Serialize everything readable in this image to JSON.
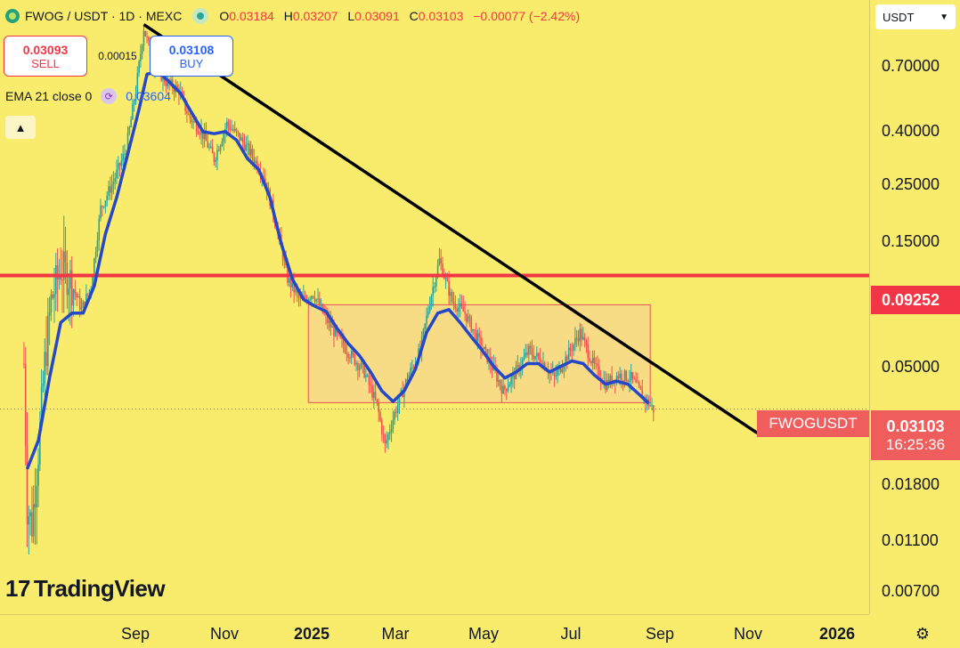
{
  "header": {
    "symbol": "FWOG / USDT · 1D · MEXC",
    "ohlc": {
      "o_label": "O",
      "o": "0.03184",
      "h_label": "H",
      "h": "0.03207",
      "l_label": "L",
      "l": "0.03091",
      "c_label": "C",
      "c": "0.03103",
      "change": "−0.00077 (−2.42%)"
    }
  },
  "trade": {
    "sell_price": "0.03093",
    "sell_label": "SELL",
    "spread": "0.00015",
    "buy_price": "0.03108",
    "buy_label": "BUY"
  },
  "indicator": {
    "label": "EMA 21 close 0",
    "value": "0.03604"
  },
  "currency_selector": "USDT",
  "price_axis": [
    "0.70000",
    "0.40000",
    "0.25000",
    "0.15000",
    "0.05000",
    "0.01800",
    "0.01100",
    "0.00700"
  ],
  "time_axis": [
    "Sep",
    "Nov",
    "2025",
    "Mar",
    "May",
    "Jul",
    "Sep",
    "Nov",
    "2026"
  ],
  "level_tag": "0.09252",
  "symbol_tag": "FWOGUSDT",
  "last_price": "0.03103",
  "countdown": "16:25:36",
  "brand": "TradingView",
  "colors": {
    "background": "#f9ec6c",
    "up": "#26a69a",
    "down": "#ef5350",
    "ema": "#2448c8",
    "level": "#f23645",
    "trendline": "#000000",
    "box_fill": "#f8d88a",
    "box_border": "#e05555"
  },
  "chart_data": {
    "type": "candlestick",
    "scale": "log",
    "ylim": [
      0.0058,
      0.88
    ],
    "xlim": [
      "2024-08-10",
      "2026-02-05"
    ],
    "ohlc_daily_approx": [
      [
        "2024-08-25",
        0.045
      ],
      [
        "2024-08-27",
        0.014
      ],
      [
        "2024-08-30",
        0.012
      ],
      [
        "2024-09-03",
        0.022
      ],
      [
        "2024-09-07",
        0.045
      ],
      [
        "2024-09-11",
        0.075
      ],
      [
        "2024-09-17",
        0.098
      ],
      [
        "2024-09-22",
        0.092
      ],
      [
        "2024-09-30",
        0.07
      ],
      [
        "2024-10-06",
        0.085
      ],
      [
        "2024-10-12",
        0.16
      ],
      [
        "2024-10-20",
        0.2
      ],
      [
        "2024-10-28",
        0.26
      ],
      [
        "2024-11-03",
        0.42
      ],
      [
        "2024-11-08",
        0.7
      ],
      [
        "2024-11-14",
        0.52
      ],
      [
        "2024-11-22",
        0.45
      ],
      [
        "2024-11-30",
        0.42
      ],
      [
        "2024-12-06",
        0.34
      ],
      [
        "2024-12-14",
        0.3
      ],
      [
        "2024-12-22",
        0.24
      ],
      [
        "2024-12-30",
        0.32
      ],
      [
        "2025-01-06",
        0.29
      ],
      [
        "2025-01-14",
        0.25
      ],
      [
        "2025-01-22",
        0.21
      ],
      [
        "2025-01-30",
        0.14
      ],
      [
        "2025-02-06",
        0.09
      ],
      [
        "2025-02-14",
        0.075
      ],
      [
        "2025-02-22",
        0.08
      ],
      [
        "2025-03-02",
        0.065
      ],
      [
        "2025-03-10",
        0.055
      ],
      [
        "2025-03-18",
        0.048
      ],
      [
        "2025-03-26",
        0.042
      ],
      [
        "2025-04-03",
        0.032
      ],
      [
        "2025-04-08",
        0.023
      ],
      [
        "2025-04-14",
        0.03
      ],
      [
        "2025-04-22",
        0.04
      ],
      [
        "2025-04-30",
        0.05
      ],
      [
        "2025-05-06",
        0.075
      ],
      [
        "2025-05-12",
        0.105
      ],
      [
        "2025-05-20",
        0.075
      ],
      [
        "2025-05-28",
        0.068
      ],
      [
        "2025-06-05",
        0.055
      ],
      [
        "2025-06-13",
        0.045
      ],
      [
        "2025-06-21",
        0.036
      ],
      [
        "2025-06-29",
        0.042
      ],
      [
        "2025-07-07",
        0.05
      ],
      [
        "2025-07-15",
        0.046
      ],
      [
        "2025-07-23",
        0.04
      ],
      [
        "2025-07-31",
        0.048
      ],
      [
        "2025-08-08",
        0.058
      ],
      [
        "2025-08-16",
        0.045
      ],
      [
        "2025-08-24",
        0.038
      ],
      [
        "2025-09-01",
        0.041
      ],
      [
        "2025-09-09",
        0.04
      ],
      [
        "2025-09-17",
        0.034
      ],
      [
        "2025-09-23",
        0.031
      ]
    ],
    "ema21": [
      [
        "2024-08-27",
        0.019
      ],
      [
        "2024-09-03",
        0.024
      ],
      [
        "2024-09-10",
        0.04
      ],
      [
        "2024-09-17",
        0.063
      ],
      [
        "2024-09-24",
        0.068
      ],
      [
        "2024-10-01",
        0.068
      ],
      [
        "2024-10-08",
        0.085
      ],
      [
        "2024-10-15",
        0.13
      ],
      [
        "2024-10-22",
        0.175
      ],
      [
        "2024-10-29",
        0.25
      ],
      [
        "2024-11-05",
        0.36
      ],
      [
        "2024-11-10",
        0.48
      ],
      [
        "2024-11-17",
        0.49
      ],
      [
        "2024-11-24",
        0.45
      ],
      [
        "2024-12-01",
        0.41
      ],
      [
        "2024-12-08",
        0.35
      ],
      [
        "2024-12-15",
        0.3
      ],
      [
        "2024-12-22",
        0.295
      ],
      [
        "2024-12-29",
        0.3
      ],
      [
        "2025-01-05",
        0.28
      ],
      [
        "2025-01-12",
        0.24
      ],
      [
        "2025-01-19",
        0.22
      ],
      [
        "2025-01-26",
        0.175
      ],
      [
        "2025-02-02",
        0.12
      ],
      [
        "2025-02-09",
        0.09
      ],
      [
        "2025-02-16",
        0.076
      ],
      [
        "2025-02-23",
        0.072
      ],
      [
        "2025-03-02",
        0.069
      ],
      [
        "2025-03-09",
        0.06
      ],
      [
        "2025-03-16",
        0.053
      ],
      [
        "2025-03-23",
        0.048
      ],
      [
        "2025-03-30",
        0.042
      ],
      [
        "2025-04-06",
        0.036
      ],
      [
        "2025-04-13",
        0.033
      ],
      [
        "2025-04-20",
        0.036
      ],
      [
        "2025-04-27",
        0.043
      ],
      [
        "2025-05-04",
        0.058
      ],
      [
        "2025-05-11",
        0.068
      ],
      [
        "2025-05-18",
        0.07
      ],
      [
        "2025-05-25",
        0.063
      ],
      [
        "2025-06-01",
        0.056
      ],
      [
        "2025-06-08",
        0.05
      ],
      [
        "2025-06-15",
        0.044
      ],
      [
        "2025-06-22",
        0.04
      ],
      [
        "2025-06-29",
        0.042
      ],
      [
        "2025-07-06",
        0.045
      ],
      [
        "2025-07-13",
        0.045
      ],
      [
        "2025-07-20",
        0.042
      ],
      [
        "2025-07-27",
        0.044
      ],
      [
        "2025-08-03",
        0.046
      ],
      [
        "2025-08-10",
        0.045
      ],
      [
        "2025-08-17",
        0.041
      ],
      [
        "2025-08-24",
        0.038
      ],
      [
        "2025-08-31",
        0.039
      ],
      [
        "2025-09-07",
        0.038
      ],
      [
        "2025-09-14",
        0.035
      ],
      [
        "2025-09-20",
        0.0325
      ]
    ],
    "horizontal_level": 0.09252,
    "trendline": [
      [
        "2024-11-08",
        0.72
      ],
      [
        "2025-11-27",
        0.0255
      ]
    ],
    "range_box": {
      "from": "2025-02-19",
      "to": "2025-09-21",
      "low": 0.0327,
      "high": 0.0728
    },
    "last_price": 0.03103
  }
}
